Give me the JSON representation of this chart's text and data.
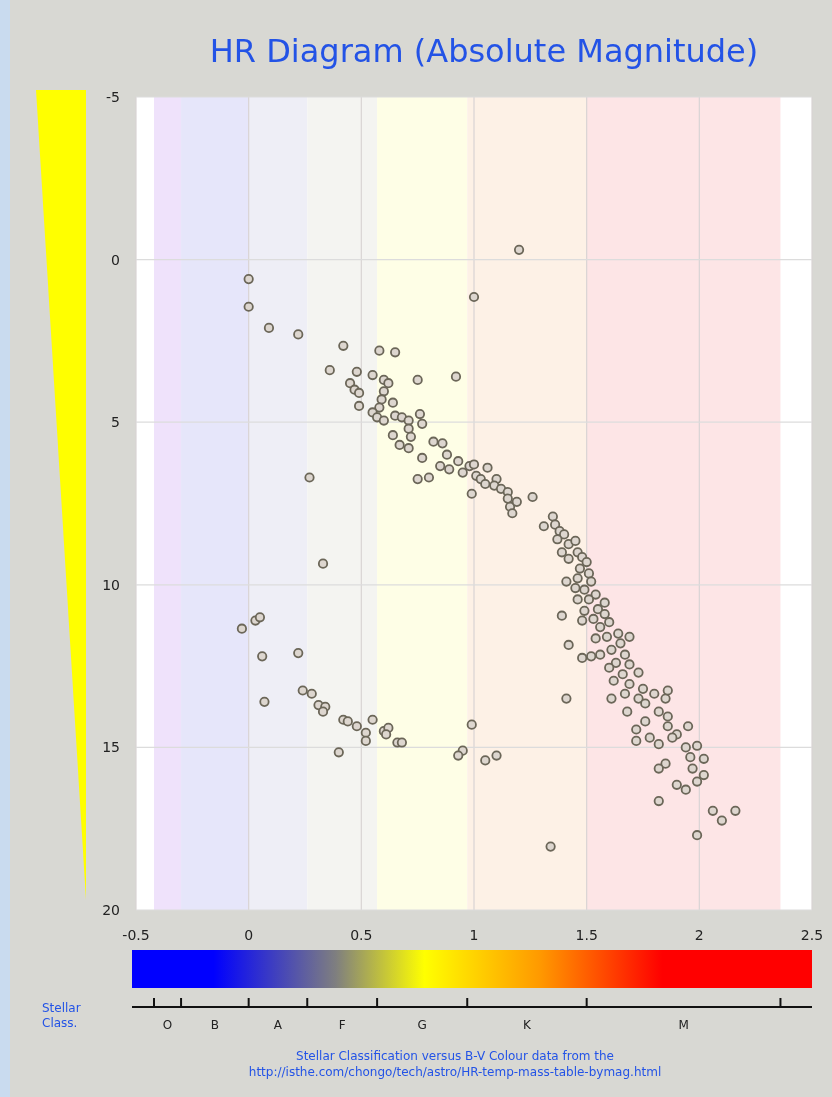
{
  "chart_data": {
    "type": "scatter",
    "title": "HR Diagram (Absolute Magnitude)",
    "xlim": [
      -0.5,
      2.5
    ],
    "xticks": [
      -0.5,
      0,
      0.5,
      1,
      1.5,
      2,
      2.5
    ],
    "ylim": [
      20,
      -5
    ],
    "yticks": [
      -5,
      0,
      5,
      10,
      15,
      20
    ],
    "grid": true,
    "marker": "circle",
    "bands": [
      {
        "axis": "x",
        "from": -0.42,
        "to": -0.3,
        "color": "#efe2fb"
      },
      {
        "axis": "x",
        "from": -0.3,
        "to": 0,
        "color": "#e6e6fa"
      },
      {
        "axis": "x",
        "from": 0,
        "to": 0.26,
        "color": "#eeeef6"
      },
      {
        "axis": "x",
        "from": 0.26,
        "to": 0.57,
        "color": "#f4f4f1"
      },
      {
        "axis": "x",
        "from": 0.57,
        "to": 0.97,
        "color": "#fefee6"
      },
      {
        "axis": "x",
        "from": 0.97,
        "to": 1.5,
        "color": "#fdf1e6"
      },
      {
        "axis": "x",
        "from": 1.5,
        "to": 2.36,
        "color": "#fde5e6"
      }
    ],
    "annotations": [
      "Stellar Class.",
      "O",
      "B",
      "A",
      "F",
      "G",
      "K",
      "M",
      "Stellar Classification versus B-V Colour data from the",
      "http://isthe.com/chongo/tech/astro/HR-temp-mass-table-bymag.html"
    ],
    "series": [
      {
        "color": "#6b6658",
        "x": [
          1.2,
          0,
          0,
          0.09,
          0.22,
          0.42,
          0.58,
          0.65,
          0.36,
          0.48,
          0.55,
          0.92,
          0.75,
          1,
          0.45,
          0.47,
          0.49,
          0.49,
          0.6,
          0.62,
          0.6,
          0.59,
          0.64,
          0.58,
          0.55,
          0.57,
          0.6,
          0.65,
          0.68,
          0.71,
          0.76,
          0.77,
          0.71,
          0.72,
          0.67,
          0.64,
          0.71,
          0.77,
          0.82,
          0.86,
          0.88,
          0.85,
          0.89,
          0.75,
          0.8,
          0.93,
          0.95,
          0.98,
          1,
          0.99,
          1.01,
          1.06,
          1.03,
          1.05,
          1.1,
          1.09,
          1.12,
          1.15,
          1.15,
          1.16,
          1.17,
          1.19,
          1.26,
          1.31,
          1.35,
          1.36,
          1.38,
          1.4,
          1.37,
          1.42,
          1.39,
          1.45,
          1.42,
          1.46,
          1.48,
          1.47,
          1.5,
          1.51,
          1.46,
          1.41,
          1.52,
          1.45,
          1.49,
          1.54,
          1.51,
          1.46,
          1.58,
          1.55,
          1.49,
          1.58,
          1.53,
          1.6,
          1.56,
          1.48,
          1.39,
          1.64,
          1.59,
          1.54,
          1.65,
          1.69,
          1.61,
          1.56,
          1.67,
          1.42,
          1.48,
          1.52,
          1.63,
          1.69,
          1.6,
          1.66,
          1.73,
          1.62,
          1.69,
          1.67,
          1.75,
          1.61,
          1.73,
          1.8,
          1.76,
          1.85,
          1.86,
          1.41,
          1.68,
          1.82,
          1.86,
          1.76,
          1.72,
          1.72,
          1.86,
          1.9,
          1.95,
          1.78,
          1.82,
          1.88,
          1.94,
          1.96,
          1.99,
          2.02,
          1.97,
          1.85,
          1.82,
          1.82,
          1.9,
          1.94,
          1.99,
          2.02,
          2.06,
          2.1,
          2.16,
          1.99,
          1.34,
          0.27,
          0.33,
          -0.03,
          0.03,
          0.05,
          0.06,
          0.22,
          0.07,
          0.24,
          0.28,
          0.31,
          0.34,
          0.33,
          0.42,
          0.44,
          0.48,
          0.55,
          0.52,
          0.52,
          0.6,
          0.62,
          0.61,
          0.66,
          0.68,
          0.4,
          0.99,
          0.95,
          0.93,
          1.05,
          1.1
        ],
        "values": [
          -0.3,
          0.6,
          1.45,
          2.1,
          2.3,
          2.65,
          2.8,
          2.85,
          3.4,
          3.45,
          3.55,
          3.6,
          3.7,
          1.15,
          3.8,
          4,
          4.1,
          4.5,
          3.7,
          3.8,
          4.05,
          4.3,
          4.4,
          4.55,
          4.7,
          4.85,
          4.95,
          4.8,
          4.85,
          4.95,
          4.75,
          5.05,
          5.2,
          5.45,
          5.7,
          5.4,
          5.8,
          6.1,
          5.6,
          5.65,
          6,
          6.35,
          6.45,
          6.75,
          6.7,
          6.2,
          6.55,
          6.35,
          6.3,
          7.2,
          6.65,
          6.4,
          6.75,
          6.9,
          6.75,
          6.95,
          7.05,
          7.15,
          7.35,
          7.6,
          7.8,
          7.45,
          7.3,
          8.2,
          7.9,
          8.15,
          8.35,
          8.45,
          8.6,
          8.75,
          9,
          8.65,
          9.2,
          9,
          9.15,
          9.5,
          9.3,
          9.65,
          9.8,
          9.9,
          9.9,
          10.1,
          10.15,
          10.3,
          10.45,
          10.45,
          10.55,
          10.75,
          10.8,
          10.9,
          11.05,
          11.15,
          11.3,
          11.1,
          10.95,
          11.5,
          11.6,
          11.65,
          11.8,
          11.6,
          12,
          12.15,
          12.15,
          11.85,
          12.25,
          12.2,
          12.4,
          12.45,
          12.55,
          12.75,
          12.7,
          12.95,
          13.05,
          13.35,
          13.2,
          13.5,
          13.5,
          13.35,
          13.65,
          13.5,
          13.25,
          13.5,
          13.9,
          13.9,
          14.05,
          14.2,
          14.45,
          14.8,
          14.35,
          14.6,
          14.35,
          14.7,
          14.9,
          14.7,
          15,
          15.3,
          14.95,
          15.35,
          15.65,
          15.5,
          15.65,
          16.65,
          16.15,
          16.3,
          16.05,
          15.85,
          16.95,
          17.25,
          16.95,
          17.7,
          18.05,
          6.7,
          9.35,
          11.35,
          11.1,
          11,
          12.2,
          12.1,
          13.6,
          13.25,
          13.35,
          13.7,
          13.75,
          13.9,
          14.15,
          14.2,
          14.35,
          14.15,
          14.55,
          14.8,
          14.5,
          14.4,
          14.6,
          14.85,
          14.85,
          15.15,
          14.3,
          15.1,
          15.25,
          15.4,
          15.25
        ]
      }
    ]
  }
}
